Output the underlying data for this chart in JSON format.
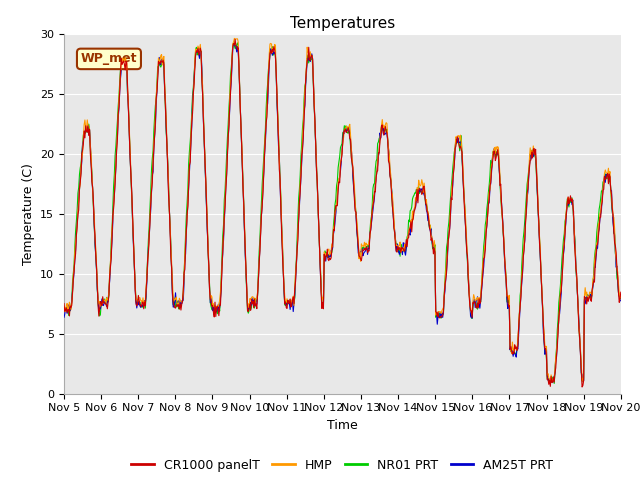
{
  "title": "Temperatures",
  "xlabel": "Time",
  "ylabel": "Temperature (C)",
  "ylim": [
    0,
    30
  ],
  "fig_bg_color": "#ffffff",
  "plot_bg_color": "#e8e8e8",
  "series_colors": [
    "#cc0000",
    "#ff9900",
    "#00cc00",
    "#0000cc"
  ],
  "series_labels": [
    "CR1000 panelT",
    "HMP",
    "NR01 PRT",
    "AM25T PRT"
  ],
  "annotation_text": "WP_met",
  "annotation_bg": "#ffffcc",
  "annotation_border": "#993300",
  "x_tick_labels": [
    "Nov 5",
    "Nov 6",
    "Nov 7",
    "Nov 8",
    "Nov 9",
    "Nov 10",
    "Nov 11",
    "Nov 12",
    "Nov 13",
    "Nov 14",
    "Nov 15",
    "Nov 16",
    "Nov 17",
    "Nov 18",
    "Nov 19",
    "Nov 20"
  ],
  "title_fontsize": 11,
  "axis_label_fontsize": 9,
  "tick_fontsize": 8,
  "legend_fontsize": 9,
  "figsize": [
    6.4,
    4.8
  ],
  "dpi": 100
}
